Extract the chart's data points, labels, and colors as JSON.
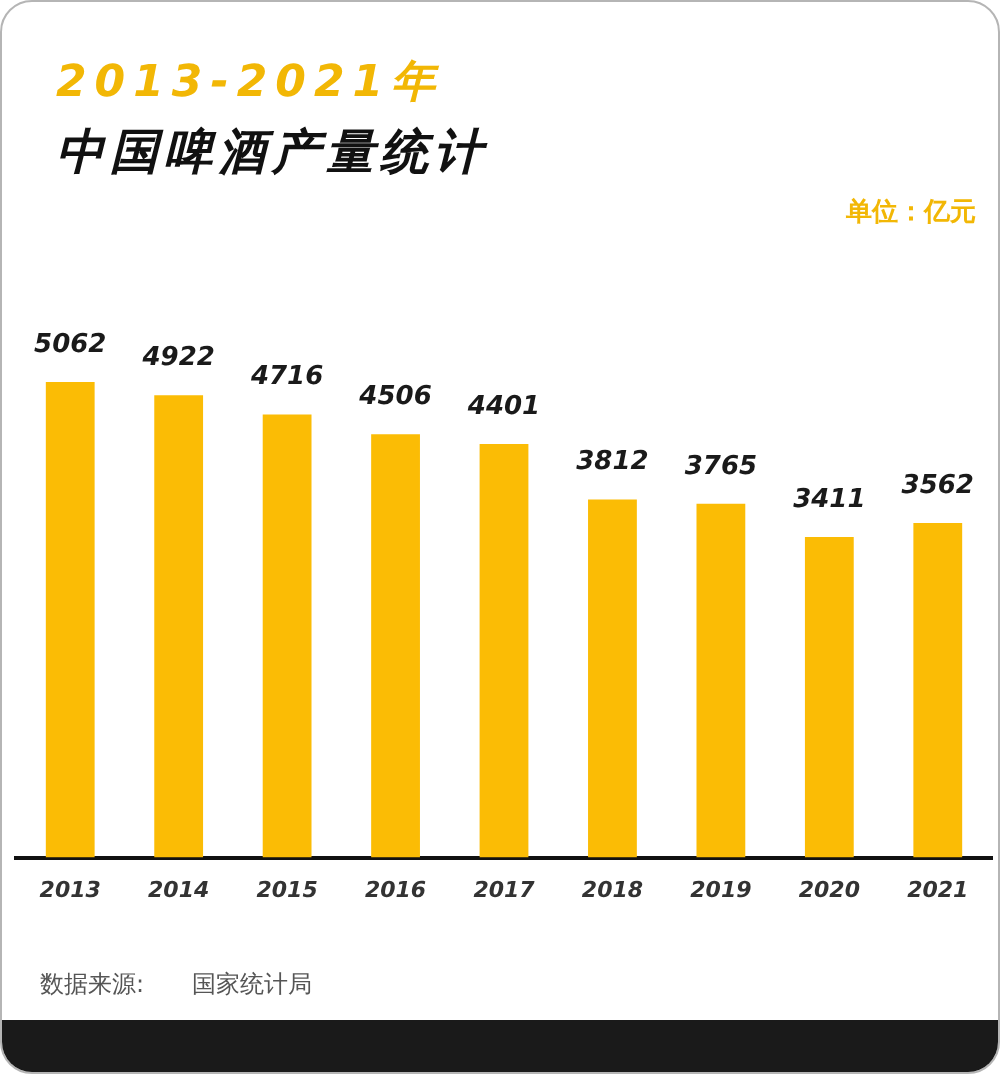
{
  "chart_data": {
    "type": "bar",
    "subtitle": "2013-2021年",
    "title": "中国啤酒产量统计",
    "categories": [
      "2013",
      "2014",
      "2015",
      "2016",
      "2017",
      "2018",
      "2019",
      "2020",
      "2021"
    ],
    "values": [
      5062,
      4922,
      4716,
      4506,
      4401,
      3812,
      3765,
      3411,
      3562
    ],
    "color": "#fbbc05",
    "data_labels": true,
    "tick_labels": "x",
    "annotations": [
      "单位：亿元",
      "数据来源: 国家统计局"
    ]
  }
}
